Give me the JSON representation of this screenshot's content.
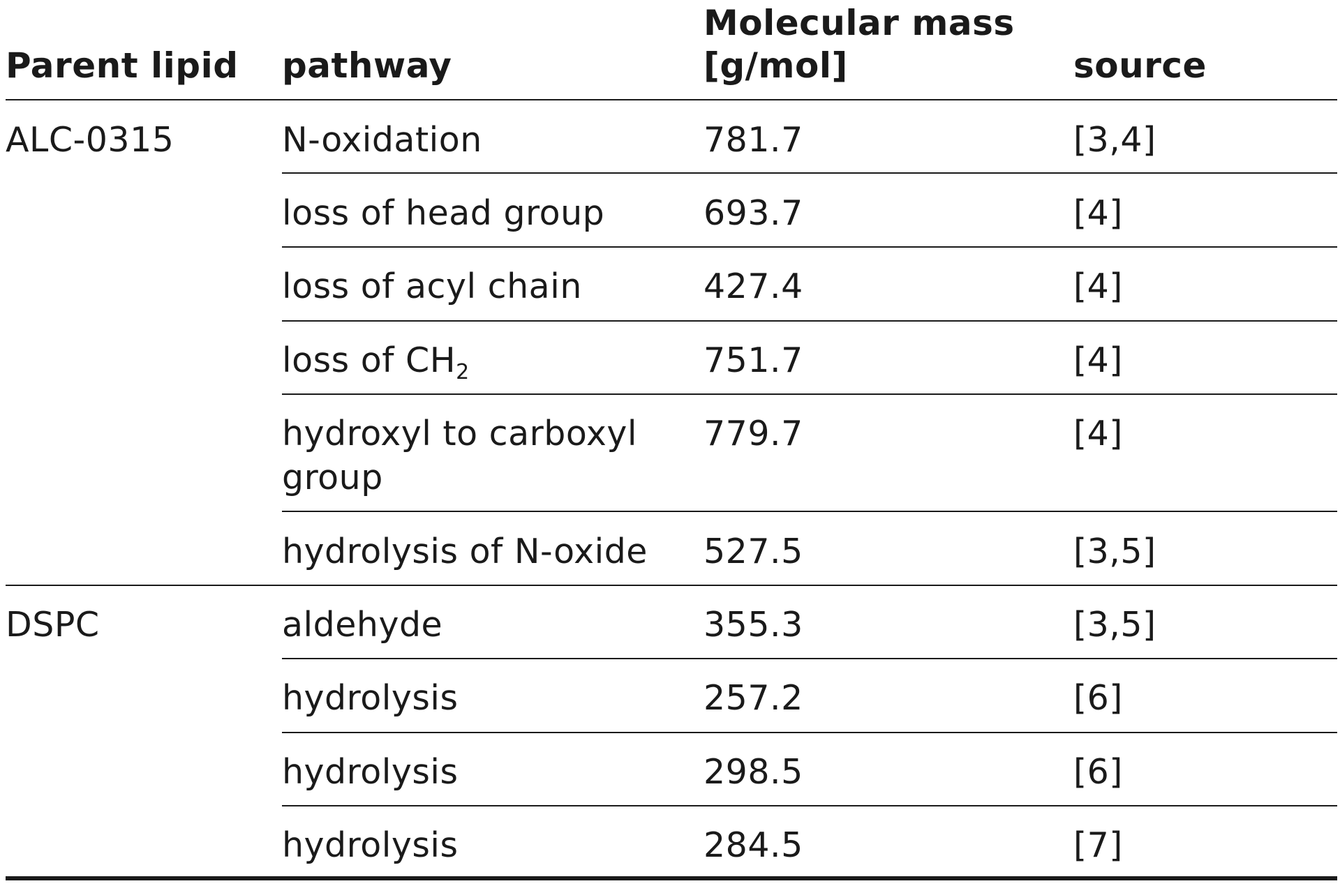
{
  "headers": {
    "parent_lipid": "Parent lipid",
    "pathway": "pathway",
    "mass_line1": "Molecular mass",
    "mass_line2": "[g/mol]",
    "source": "source"
  },
  "groups": [
    {
      "parent": "ALC-0315",
      "rows": [
        {
          "pathway": "N-oxidation",
          "mass": "781.7",
          "source": "[3,4]"
        },
        {
          "pathway": "loss of head group",
          "mass": "693.7",
          "source": "[4]"
        },
        {
          "pathway": "loss of acyl chain",
          "mass": "427.4",
          "source": "[4]"
        },
        {
          "pathway": "loss of CH",
          "pathway_sub": "2",
          "mass": "751.7",
          "source": "[4]"
        },
        {
          "pathway": "hydroxyl to carboxyl",
          "pathway_line2": "group",
          "mass": "779.7",
          "source": "[4]"
        },
        {
          "pathway": "hydrolysis of N-oxide",
          "mass": "527.5",
          "source": "[3,5]"
        }
      ]
    },
    {
      "parent": "DSPC",
      "rows": [
        {
          "pathway": "aldehyde",
          "mass": "355.3",
          "source": "[3,5]"
        },
        {
          "pathway": "hydrolysis",
          "mass": "257.2",
          "source": "[6]"
        },
        {
          "pathway": "hydrolysis",
          "mass": "298.5",
          "source": "[6]"
        },
        {
          "pathway": "hydrolysis",
          "mass": "284.5",
          "source": "[7]"
        }
      ]
    }
  ]
}
